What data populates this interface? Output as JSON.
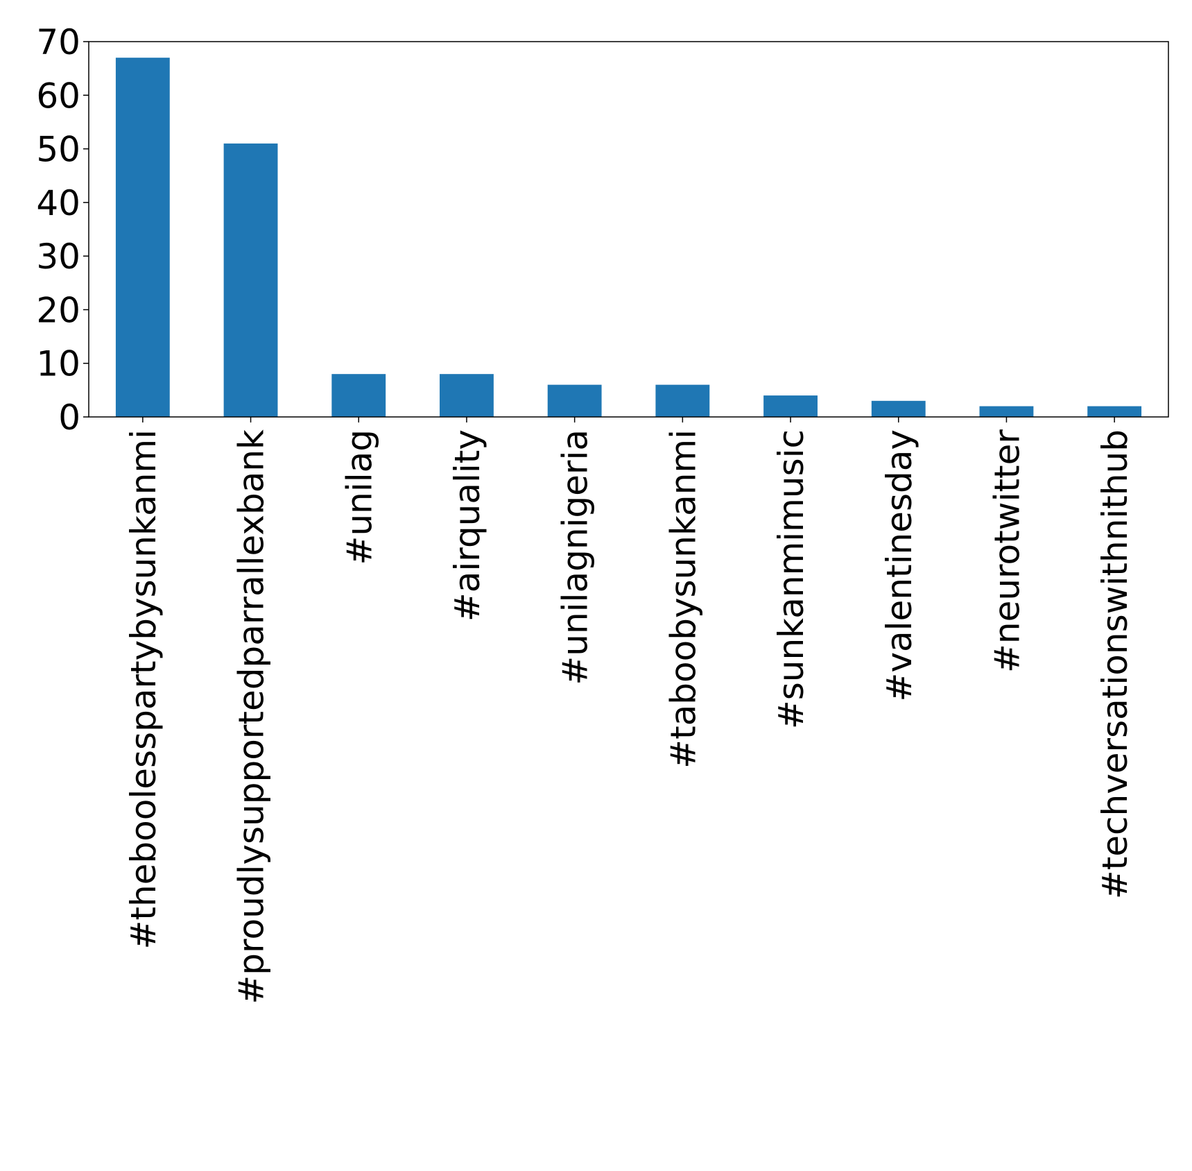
{
  "chart_data": {
    "type": "bar",
    "categories": [
      "#theboolesspartybysunkanmi",
      "#proudlysupportedparrallexbank",
      "#unilag",
      "#airquality",
      "#unilagnigeria",
      "#taboobysunkanmi",
      "#sunkanmimusic",
      "#valentinesday",
      "#neurotwitter",
      "#techversationswithnithub"
    ],
    "values": [
      67,
      51,
      8,
      8,
      6,
      6,
      4,
      3,
      2,
      2
    ],
    "ylim": [
      0,
      70
    ],
    "yticks": [
      0,
      10,
      20,
      30,
      40,
      50,
      60,
      70
    ],
    "grid": false,
    "legend": "none",
    "bar_color": "#1f77b4"
  }
}
